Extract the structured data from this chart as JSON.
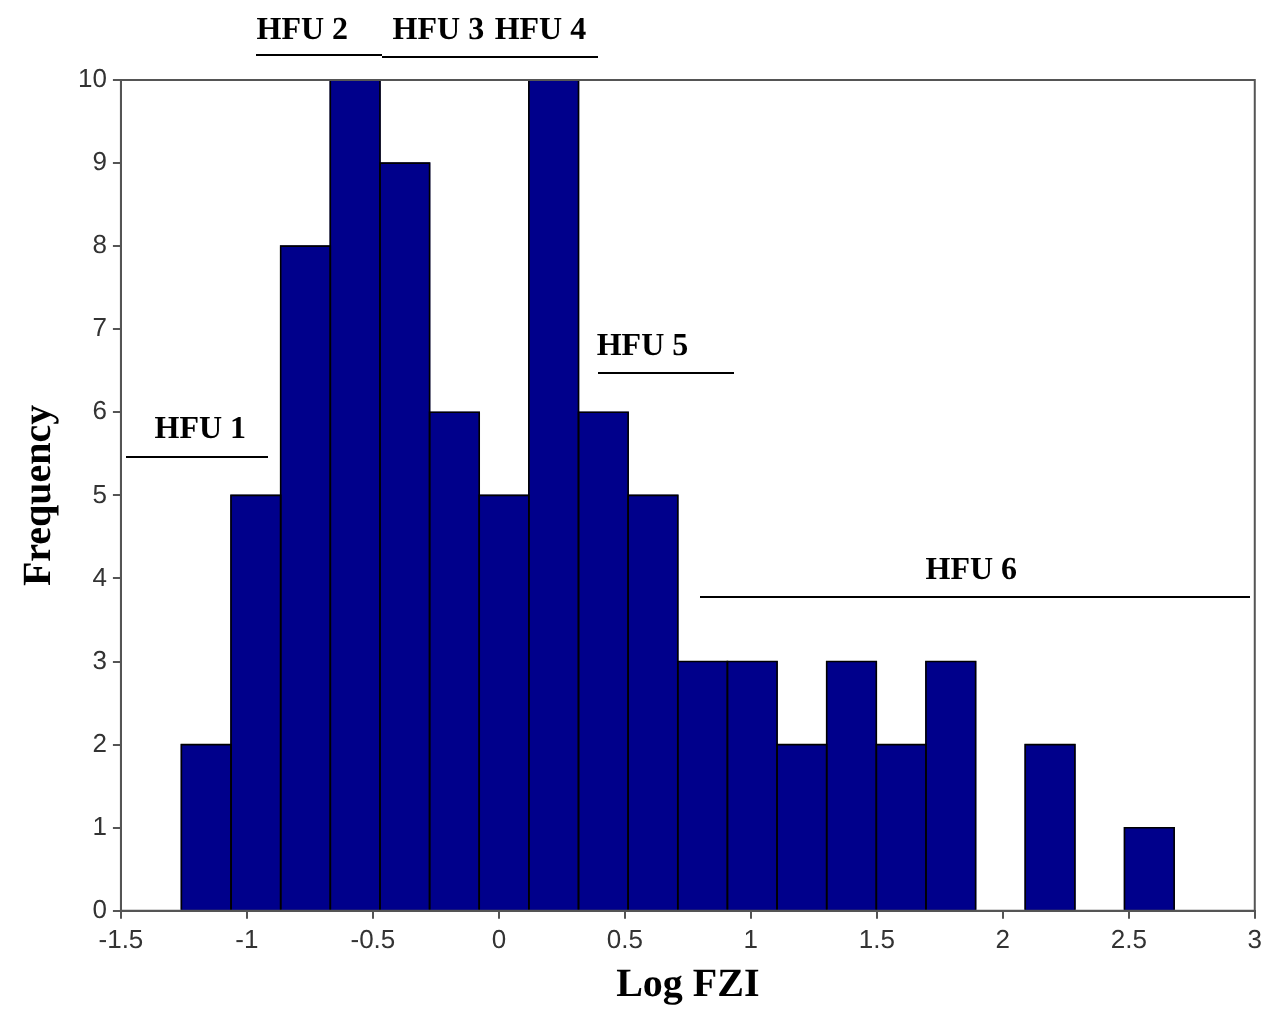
{
  "chart_data": {
    "type": "histogram",
    "xlabel": "Log FZI",
    "ylabel": "Frequency",
    "bins": [
      -1.26,
      -1.063,
      -0.866,
      -0.669,
      -0.472,
      -0.275,
      -0.078,
      0.119,
      0.316,
      0.513,
      0.71,
      0.907,
      1.104,
      1.301,
      1.498,
      1.695,
      1.892,
      2.089,
      2.286,
      2.483,
      2.68
    ],
    "values": [
      2,
      5,
      8,
      10,
      9,
      6,
      5,
      10,
      6,
      5,
      3,
      3,
      2,
      3,
      2,
      3,
      0,
      2,
      0,
      1
    ],
    "color": "#00008b",
    "xlim": [
      -1.5,
      3
    ],
    "xticks": [
      -1.5,
      -1,
      -0.5,
      0,
      0.5,
      1,
      1.5,
      2,
      2.5,
      3
    ],
    "ylim": [
      0,
      10
    ],
    "yticks": [
      0,
      1,
      2,
      3,
      4,
      5,
      6,
      7,
      8,
      9,
      10
    ],
    "grid": false,
    "annotations": [
      "HFU 1",
      "HFU 2",
      "HFU 3",
      "HFU 4",
      "HFU 5",
      "HFU 6"
    ]
  }
}
